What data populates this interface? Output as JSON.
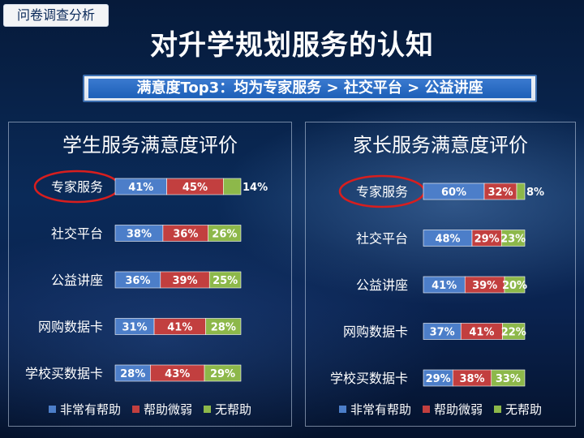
{
  "header": {
    "tag": "问卷调查分析",
    "title": "对升学规划服务的认知",
    "summary": "满意度Top3：均为专家服务 > 社交平台 > 公益讲座"
  },
  "colors": {
    "very_helpful": "#4c7ec9",
    "helpful_weak": "#c23f3f",
    "no_help": "#8db84a"
  },
  "legend": [
    "非常有帮助",
    "帮助微弱",
    "无帮助"
  ],
  "chart_data": [
    {
      "type": "bar",
      "orientation": "horizontal",
      "stacked": true,
      "title": "学生服务满意度评价",
      "categories": [
        "专家服务",
        "社交平台",
        "公益讲座",
        "网购数据卡",
        "学校买数据卡"
      ],
      "series": [
        {
          "name": "非常有帮助",
          "values": [
            41,
            38,
            36,
            31,
            28
          ]
        },
        {
          "name": "帮助微弱",
          "values": [
            45,
            36,
            39,
            41,
            43
          ]
        },
        {
          "name": "无帮助",
          "values": [
            14,
            26,
            25,
            28,
            29
          ]
        }
      ],
      "labels": [
        [
          "41%",
          "45%",
          "14%"
        ],
        [
          "38%",
          "36%",
          "26%"
        ],
        [
          "36%",
          "39%",
          "25%"
        ],
        [
          "31%",
          "41%",
          "28%"
        ],
        [
          "28%",
          "43%",
          "29%"
        ]
      ],
      "highlight": "专家服务",
      "legend_position": "bottom"
    },
    {
      "type": "bar",
      "orientation": "horizontal",
      "stacked": true,
      "title": "家长服务满意度评价",
      "categories": [
        "专家服务",
        "社交平台",
        "公益讲座",
        "网购数据卡",
        "学校买数据卡"
      ],
      "series": [
        {
          "name": "非常有帮助",
          "values": [
            60,
            48,
            41,
            37,
            29
          ]
        },
        {
          "name": "帮助微弱",
          "values": [
            32,
            29,
            39,
            41,
            38
          ]
        },
        {
          "name": "无帮助",
          "values": [
            8,
            23,
            20,
            22,
            33
          ]
        }
      ],
      "labels": [
        [
          "60%",
          "32%",
          "8%"
        ],
        [
          "48%",
          "29%",
          "23%"
        ],
        [
          "41%",
          "39%",
          "20%"
        ],
        [
          "37%",
          "41%",
          "22%"
        ],
        [
          "29%",
          "38%",
          "33%"
        ]
      ],
      "highlight": "专家服务",
      "legend_position": "bottom"
    }
  ]
}
